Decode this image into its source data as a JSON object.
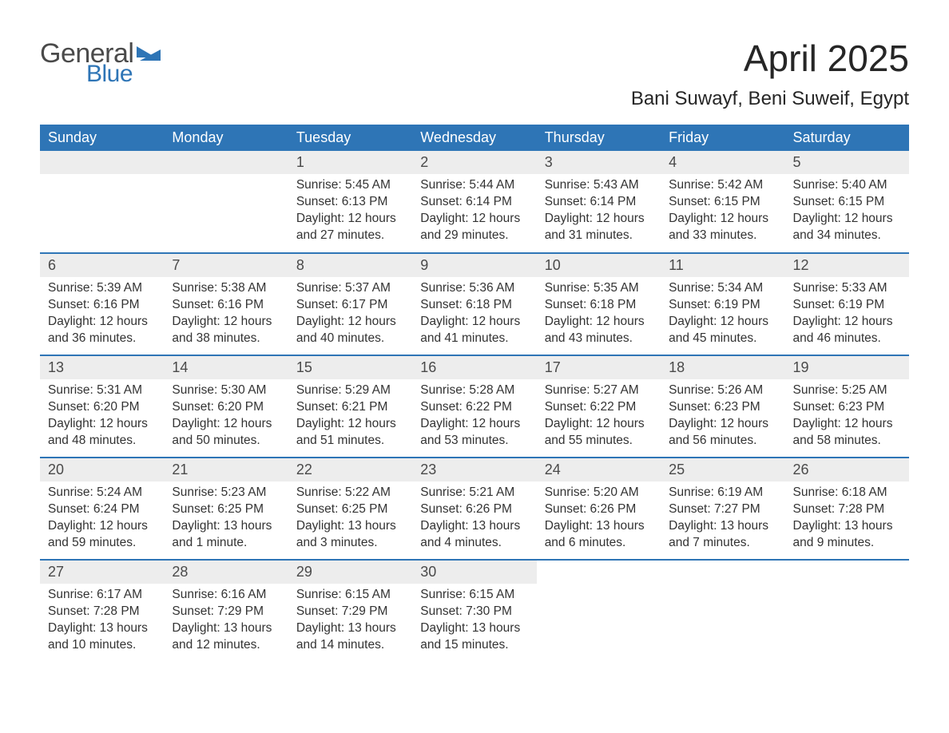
{
  "logo": {
    "text1": "General",
    "text2": "Blue"
  },
  "title": "April 2025",
  "location": "Bani Suwayf, Beni Suweif, Egypt",
  "colors": {
    "header_bg": "#2e75b6",
    "header_fg": "#ffffff",
    "daynum_bg": "#ededed",
    "text": "#333333",
    "logo_gray": "#4a4a4a",
    "logo_blue": "#2e75b6",
    "row_border": "#2e75b6"
  },
  "typography": {
    "title_fontsize": 46,
    "location_fontsize": 24,
    "header_fontsize": 18,
    "daynum_fontsize": 18,
    "body_fontsize": 15.5
  },
  "days_of_week": [
    "Sunday",
    "Monday",
    "Tuesday",
    "Wednesday",
    "Thursday",
    "Friday",
    "Saturday"
  ],
  "weeks": [
    [
      {
        "n": "",
        "blank": true
      },
      {
        "n": "",
        "blank": true
      },
      {
        "n": "1",
        "sunrise": "Sunrise: 5:45 AM",
        "sunset": "Sunset: 6:13 PM",
        "daylight": "Daylight: 12 hours and 27 minutes."
      },
      {
        "n": "2",
        "sunrise": "Sunrise: 5:44 AM",
        "sunset": "Sunset: 6:14 PM",
        "daylight": "Daylight: 12 hours and 29 minutes."
      },
      {
        "n": "3",
        "sunrise": "Sunrise: 5:43 AM",
        "sunset": "Sunset: 6:14 PM",
        "daylight": "Daylight: 12 hours and 31 minutes."
      },
      {
        "n": "4",
        "sunrise": "Sunrise: 5:42 AM",
        "sunset": "Sunset: 6:15 PM",
        "daylight": "Daylight: 12 hours and 33 minutes."
      },
      {
        "n": "5",
        "sunrise": "Sunrise: 5:40 AM",
        "sunset": "Sunset: 6:15 PM",
        "daylight": "Daylight: 12 hours and 34 minutes."
      }
    ],
    [
      {
        "n": "6",
        "sunrise": "Sunrise: 5:39 AM",
        "sunset": "Sunset: 6:16 PM",
        "daylight": "Daylight: 12 hours and 36 minutes."
      },
      {
        "n": "7",
        "sunrise": "Sunrise: 5:38 AM",
        "sunset": "Sunset: 6:16 PM",
        "daylight": "Daylight: 12 hours and 38 minutes."
      },
      {
        "n": "8",
        "sunrise": "Sunrise: 5:37 AM",
        "sunset": "Sunset: 6:17 PM",
        "daylight": "Daylight: 12 hours and 40 minutes."
      },
      {
        "n": "9",
        "sunrise": "Sunrise: 5:36 AM",
        "sunset": "Sunset: 6:18 PM",
        "daylight": "Daylight: 12 hours and 41 minutes."
      },
      {
        "n": "10",
        "sunrise": "Sunrise: 5:35 AM",
        "sunset": "Sunset: 6:18 PM",
        "daylight": "Daylight: 12 hours and 43 minutes."
      },
      {
        "n": "11",
        "sunrise": "Sunrise: 5:34 AM",
        "sunset": "Sunset: 6:19 PM",
        "daylight": "Daylight: 12 hours and 45 minutes."
      },
      {
        "n": "12",
        "sunrise": "Sunrise: 5:33 AM",
        "sunset": "Sunset: 6:19 PM",
        "daylight": "Daylight: 12 hours and 46 minutes."
      }
    ],
    [
      {
        "n": "13",
        "sunrise": "Sunrise: 5:31 AM",
        "sunset": "Sunset: 6:20 PM",
        "daylight": "Daylight: 12 hours and 48 minutes."
      },
      {
        "n": "14",
        "sunrise": "Sunrise: 5:30 AM",
        "sunset": "Sunset: 6:20 PM",
        "daylight": "Daylight: 12 hours and 50 minutes."
      },
      {
        "n": "15",
        "sunrise": "Sunrise: 5:29 AM",
        "sunset": "Sunset: 6:21 PM",
        "daylight": "Daylight: 12 hours and 51 minutes."
      },
      {
        "n": "16",
        "sunrise": "Sunrise: 5:28 AM",
        "sunset": "Sunset: 6:22 PM",
        "daylight": "Daylight: 12 hours and 53 minutes."
      },
      {
        "n": "17",
        "sunrise": "Sunrise: 5:27 AM",
        "sunset": "Sunset: 6:22 PM",
        "daylight": "Daylight: 12 hours and 55 minutes."
      },
      {
        "n": "18",
        "sunrise": "Sunrise: 5:26 AM",
        "sunset": "Sunset: 6:23 PM",
        "daylight": "Daylight: 12 hours and 56 minutes."
      },
      {
        "n": "19",
        "sunrise": "Sunrise: 5:25 AM",
        "sunset": "Sunset: 6:23 PM",
        "daylight": "Daylight: 12 hours and 58 minutes."
      }
    ],
    [
      {
        "n": "20",
        "sunrise": "Sunrise: 5:24 AM",
        "sunset": "Sunset: 6:24 PM",
        "daylight": "Daylight: 12 hours and 59 minutes."
      },
      {
        "n": "21",
        "sunrise": "Sunrise: 5:23 AM",
        "sunset": "Sunset: 6:25 PM",
        "daylight": "Daylight: 13 hours and 1 minute."
      },
      {
        "n": "22",
        "sunrise": "Sunrise: 5:22 AM",
        "sunset": "Sunset: 6:25 PM",
        "daylight": "Daylight: 13 hours and 3 minutes."
      },
      {
        "n": "23",
        "sunrise": "Sunrise: 5:21 AM",
        "sunset": "Sunset: 6:26 PM",
        "daylight": "Daylight: 13 hours and 4 minutes."
      },
      {
        "n": "24",
        "sunrise": "Sunrise: 5:20 AM",
        "sunset": "Sunset: 6:26 PM",
        "daylight": "Daylight: 13 hours and 6 minutes."
      },
      {
        "n": "25",
        "sunrise": "Sunrise: 6:19 AM",
        "sunset": "Sunset: 7:27 PM",
        "daylight": "Daylight: 13 hours and 7 minutes."
      },
      {
        "n": "26",
        "sunrise": "Sunrise: 6:18 AM",
        "sunset": "Sunset: 7:28 PM",
        "daylight": "Daylight: 13 hours and 9 minutes."
      }
    ],
    [
      {
        "n": "27",
        "sunrise": "Sunrise: 6:17 AM",
        "sunset": "Sunset: 7:28 PM",
        "daylight": "Daylight: 13 hours and 10 minutes."
      },
      {
        "n": "28",
        "sunrise": "Sunrise: 6:16 AM",
        "sunset": "Sunset: 7:29 PM",
        "daylight": "Daylight: 13 hours and 12 minutes."
      },
      {
        "n": "29",
        "sunrise": "Sunrise: 6:15 AM",
        "sunset": "Sunset: 7:29 PM",
        "daylight": "Daylight: 13 hours and 14 minutes."
      },
      {
        "n": "30",
        "sunrise": "Sunrise: 6:15 AM",
        "sunset": "Sunset: 7:30 PM",
        "daylight": "Daylight: 13 hours and 15 minutes."
      },
      {
        "n": "",
        "blank": true
      },
      {
        "n": "",
        "blank": true
      },
      {
        "n": "",
        "blank": true
      }
    ]
  ]
}
